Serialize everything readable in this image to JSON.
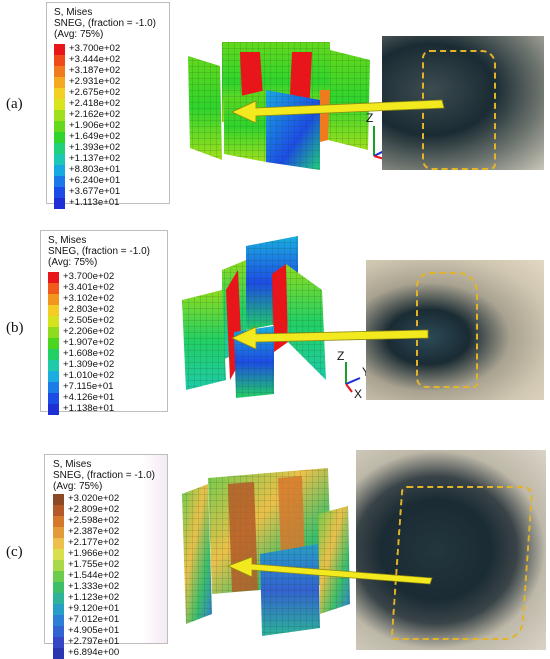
{
  "panels": [
    {
      "label": "(a)",
      "legend": {
        "lines": [
          "S, Mises",
          "SNEG, (fraction = -1.0)",
          "(Avg: 75%)"
        ],
        "values": [
          "+3.700e+02",
          "+3.444e+02",
          "+3.187e+02",
          "+2.931e+02",
          "+2.675e+02",
          "+2.418e+02",
          "+2.162e+02",
          "+1.906e+02",
          "+1.649e+02",
          "+1.393e+02",
          "+1.137e+02",
          "+8.803e+01",
          "+6.240e+01",
          "+3.677e+01",
          "+1.113e+01"
        ],
        "colors": [
          "#e8151a",
          "#f04a1a",
          "#f07a1e",
          "#f4a922",
          "#f3d024",
          "#d9e41f",
          "#9fe01d",
          "#63d81c",
          "#2fd42c",
          "#20d07a",
          "#1cc7b4",
          "#19a9e2",
          "#1a78e8",
          "#1c4ce6",
          "#1f2fd6"
        ]
      },
      "axes": [
        "Z",
        "Y",
        "X"
      ]
    },
    {
      "label": "(b)",
      "legend": {
        "lines": [
          "S, Mises",
          "SNEG, (fraction = -1.0)",
          "(Avg: 75%)"
        ],
        "values": [
          "+3.700e+02",
          "+3.401e+02",
          "+3.102e+02",
          "+2.803e+02",
          "+2.505e+02",
          "+2.206e+02",
          "+1.907e+02",
          "+1.608e+02",
          "+1.309e+02",
          "+1.010e+02",
          "+7.115e+01",
          "+4.126e+01",
          "+1.138e+01"
        ],
        "colors": [
          "#e8151a",
          "#f05a1a",
          "#f3961f",
          "#f4cc24",
          "#d5e31f",
          "#8edc1d",
          "#4ad51f",
          "#22d064",
          "#1ecaa8",
          "#1aaee0",
          "#1b7ce8",
          "#1c4ce6",
          "#1f2fd6"
        ]
      },
      "axes": [
        "Z",
        "Y",
        "X"
      ]
    },
    {
      "label": "(c)",
      "legend": {
        "lines": [
          "S, Mises",
          "SNEG, (fraction = -1.0)",
          "(Avg: 75%)"
        ],
        "values": [
          "+3.020e+02",
          "+2.809e+02",
          "+2.598e+02",
          "+2.387e+02",
          "+2.177e+02",
          "+1.966e+02",
          "+1.755e+02",
          "+1.544e+02",
          "+1.333e+02",
          "+1.123e+02",
          "+9.120e+01",
          "+7.012e+01",
          "+4.905e+01",
          "+2.797e+01",
          "+6.894e+00"
        ],
        "colors": [
          "#8b4a24",
          "#b45a28",
          "#d4782e",
          "#e39a3a",
          "#ecc04a",
          "#d8de4c",
          "#a9d848",
          "#6ccc4e",
          "#3dbf6a",
          "#2cb39a",
          "#279ec6",
          "#2d7fd6",
          "#3362d2",
          "#3547c4",
          "#2a35b0"
        ]
      },
      "axes": []
    }
  ],
  "colors": {
    "arrow": "#f2ea1e",
    "arrow_edge": "#8f8a12",
    "outline": "#e3b427",
    "rock_dark": "#1a2b33",
    "rock_light": "#c9c6b8"
  }
}
